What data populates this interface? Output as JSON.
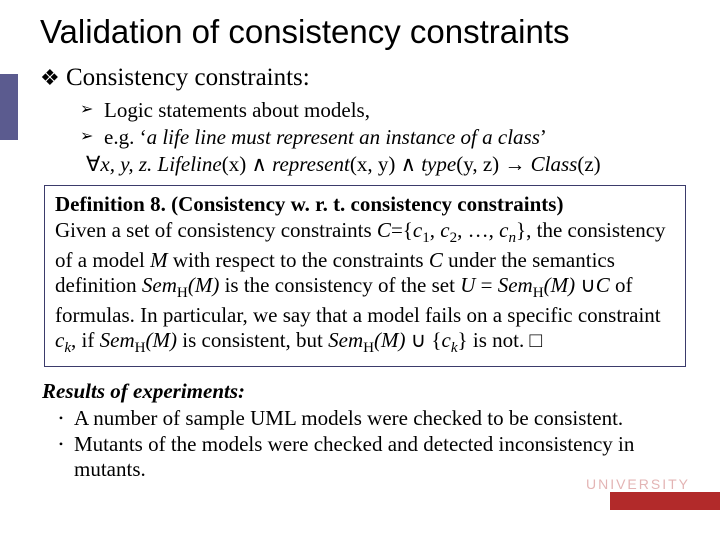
{
  "colors": {
    "background": "#ffffff",
    "text": "#000000",
    "box_border": "#3b3b6b",
    "sidebar": "#5b5b8f",
    "accent": "#b22a2a"
  },
  "typography": {
    "title_font": "Arial",
    "title_size_pt": 33,
    "body_font": "Times New Roman",
    "l1_size_pt": 25,
    "l2_size_pt": 21,
    "defbox_size_pt": 21,
    "results_size_pt": 21
  },
  "bullets": {
    "l1_glyph": "❖",
    "l2_glyph": "➢",
    "res_glyph": "•"
  },
  "title": "Validation of consistency constraints",
  "l1_text": "Consistency constraints:",
  "l2_items": {
    "a": "Logic statements about models,",
    "b_prefix": "e.g. ‘",
    "b_italic": "a life line must represent an instance of a class",
    "b_suffix": "’"
  },
  "formula": {
    "forall": "∀",
    "vars": "x, y, z. ",
    "p1": "Lifeline",
    "arg1": "(x)",
    "and": " ∧ ",
    "p2": "represent",
    "arg2": "(x, y)",
    "p3": "type",
    "arg3": "(y, z)",
    "arrow": " → ",
    "p4": "Class",
    "arg4": "(z)"
  },
  "definition": {
    "lead": "Definition 8. (Consistency w. r. t. consistency constraints)",
    "line1_a": "Given a set of consistency constraints ",
    "C": "C",
    "eq": "={",
    "c1": "c",
    "i1": "1",
    "comma": ", ",
    "c2": "c",
    "i2": "2",
    "dots": ", …, ",
    "cn": "c",
    "in": "n",
    "close": "}, the",
    "line2_a": "consistency of a model ",
    "M": "M",
    "line2_b": " with respect to the constraints ",
    "line2_c": " under",
    "line3_a": "the semantics definition ",
    "Sem": "Sem",
    "H": "H",
    "ofM": "(M)",
    "line3_b": " is the consistency of the set ",
    "U": "U",
    "line4_a": "= ",
    "cup": "∪",
    "line4_b": " of formulas.  In particular, we say that a model",
    "line5_a": "fails on a specific constraint ",
    "ck": "c",
    "ik": "k",
    "line5_b": ", if ",
    "line5_c": " is consistent, but",
    "line6_b": " ∪ {",
    "line6_c": "} is not. □"
  },
  "results": {
    "head": "Results of experiments:",
    "items": {
      "a": "A number of sample UML models were checked to be consistent.",
      "b": "Mutants of the models were checked and detected inconsistency in mutants."
    }
  },
  "footer_text": "UNIVERSITY"
}
